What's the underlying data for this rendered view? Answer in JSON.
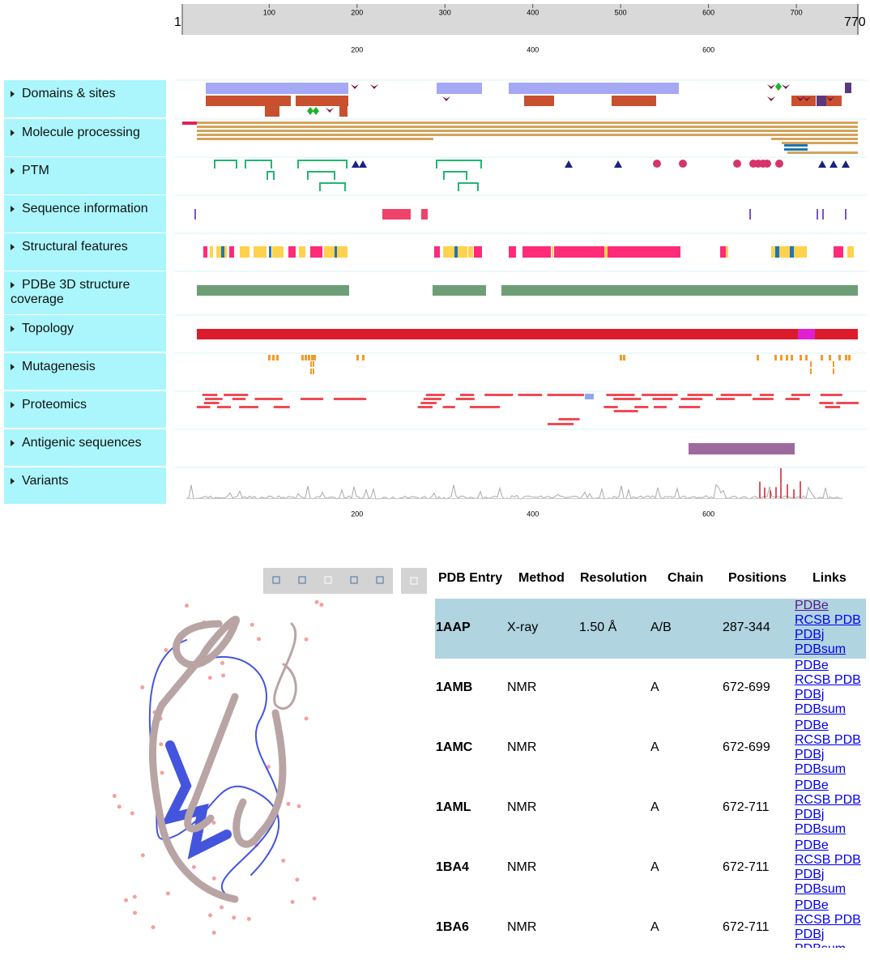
{
  "ruler": {
    "start": 1,
    "end": 770,
    "ticks": [
      100,
      200,
      300,
      400,
      500,
      600,
      700
    ]
  },
  "axis": {
    "ticks": [
      200,
      400,
      600
    ]
  },
  "tracks": [
    "Domains & sites",
    "Molecule processing",
    "PTM",
    "Sequence information",
    "Structural features",
    "PDBe 3D structure coverage",
    "Topology",
    "Mutagenesis",
    "Proteomics",
    "Antigenic sequences",
    "Variants"
  ],
  "table": {
    "headers": [
      "PDB Entry",
      "Method",
      "Resolution",
      "Chain",
      "Positions",
      "Links"
    ],
    "rows": [
      {
        "entry": "1AAP",
        "method": "X-ray",
        "resolution": "1.50 Å",
        "chain": "A/B",
        "positions": "287-344"
      },
      {
        "entry": "1AMB",
        "method": "NMR",
        "chain": "A",
        "positions": "672-699"
      },
      {
        "entry": "1AMC",
        "method": "NMR",
        "chain": "A",
        "positions": "672-699"
      },
      {
        "entry": "1AML",
        "method": "NMR",
        "chain": "A",
        "positions": "672-711"
      },
      {
        "entry": "1BA4",
        "method": "NMR",
        "chain": "A",
        "positions": "672-711"
      },
      {
        "entry": "1BA6",
        "method": "NMR",
        "chain": "A",
        "positions": "672-711"
      }
    ],
    "links": [
      "PDBe",
      "RCSB PDB",
      "PDBj",
      "PDBsum"
    ]
  }
}
